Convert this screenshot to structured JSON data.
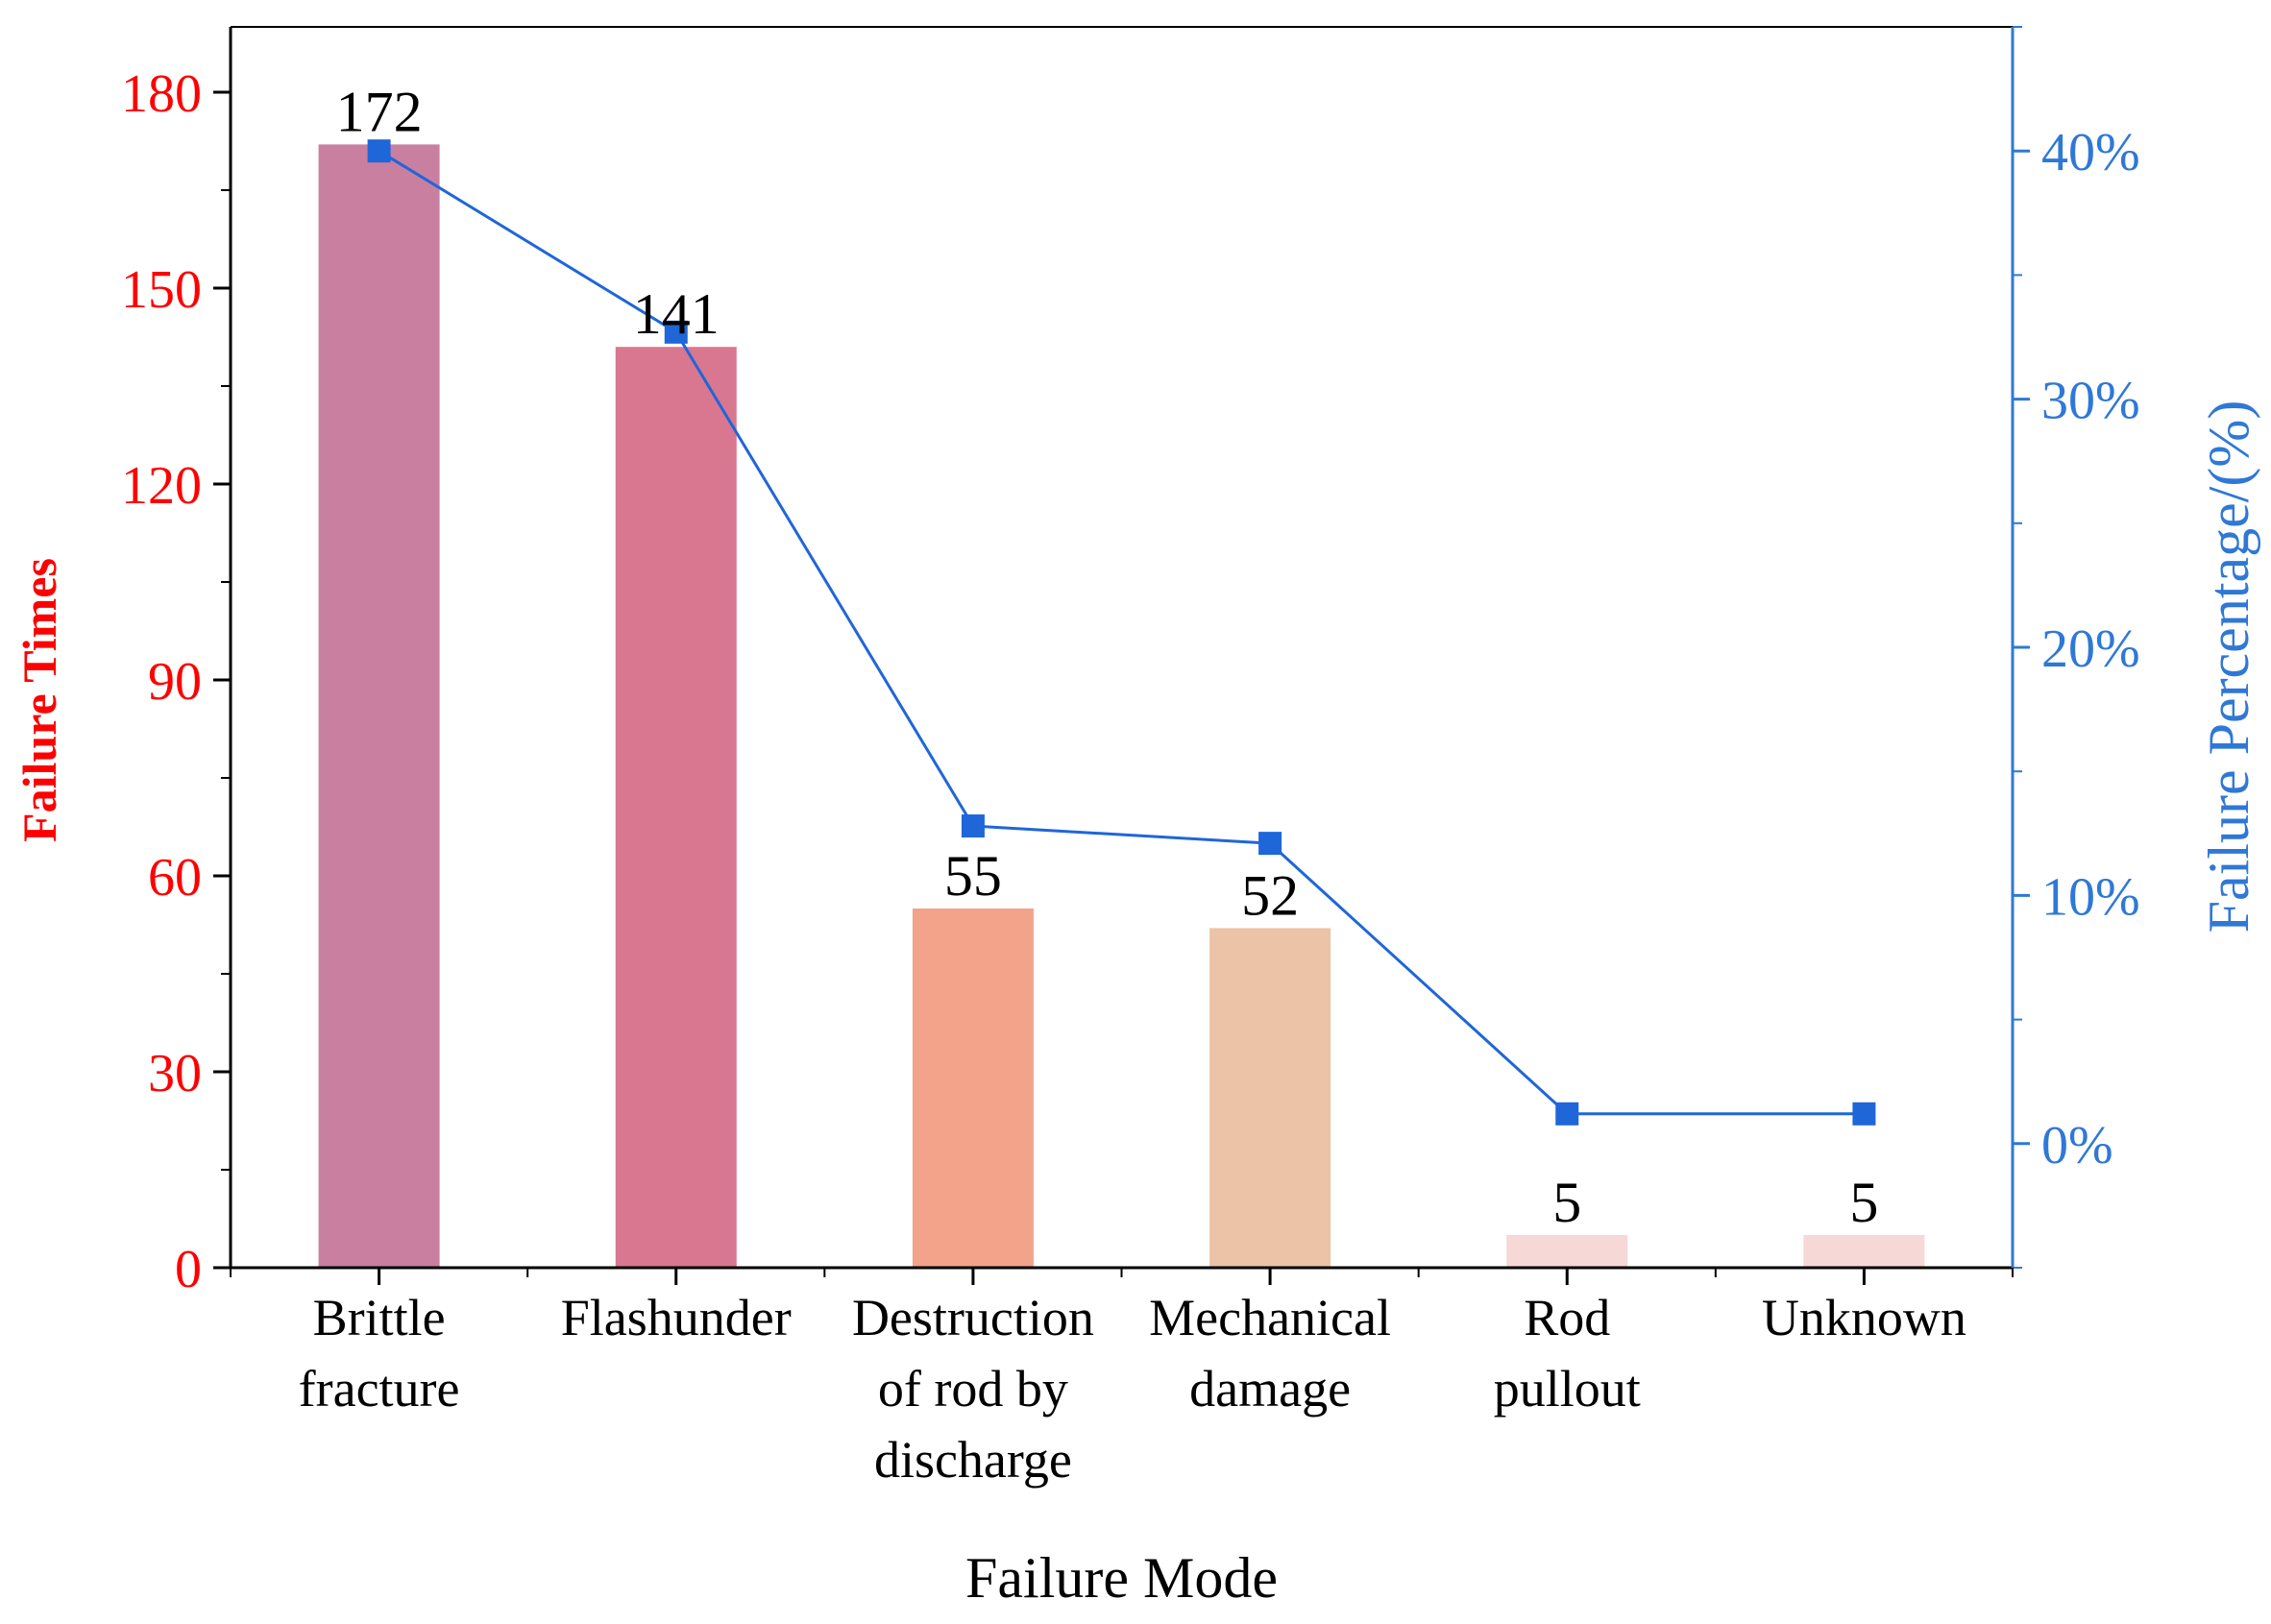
{
  "chart_data": {
    "type": "bar",
    "categories": [
      [
        "Brittle",
        "fracture"
      ],
      [
        "Flashunder"
      ],
      [
        "Destruction",
        "of rod by",
        "discharge"
      ],
      [
        "Mechanical",
        "damage"
      ],
      [
        "Rod",
        "pullout"
      ],
      [
        "Unknown"
      ]
    ],
    "values": [
      172,
      141,
      55,
      52,
      5,
      5
    ],
    "data_labels": [
      "172",
      "141",
      "55",
      "52",
      "5",
      "5"
    ],
    "bar_colors": [
      "#c97fa0",
      "#d97790",
      "#f2a38a",
      "#ecc3a6",
      "#f6d8d6",
      "#f6d8d6"
    ],
    "line_series": {
      "values": [
        40.0,
        32.7,
        12.8,
        12.1,
        1.2,
        1.2
      ],
      "color": "#1f66d9"
    },
    "xlabel": "Failure Mode",
    "ylabel": "Failure Times",
    "y2label": "Failure Percentage/(%)",
    "ylim": [
      0,
      190
    ],
    "yticks": [
      0,
      30,
      60,
      90,
      120,
      150,
      180
    ],
    "y2lim": [
      -5,
      45
    ],
    "y2ticks": [
      0,
      10,
      20,
      30,
      40
    ],
    "y2tick_labels": [
      "0%",
      "10%",
      "20%",
      "30%",
      "40%"
    ],
    "left_axis_color": "#ff0000",
    "right_axis_color": "#2f78d6",
    "grid": false
  }
}
